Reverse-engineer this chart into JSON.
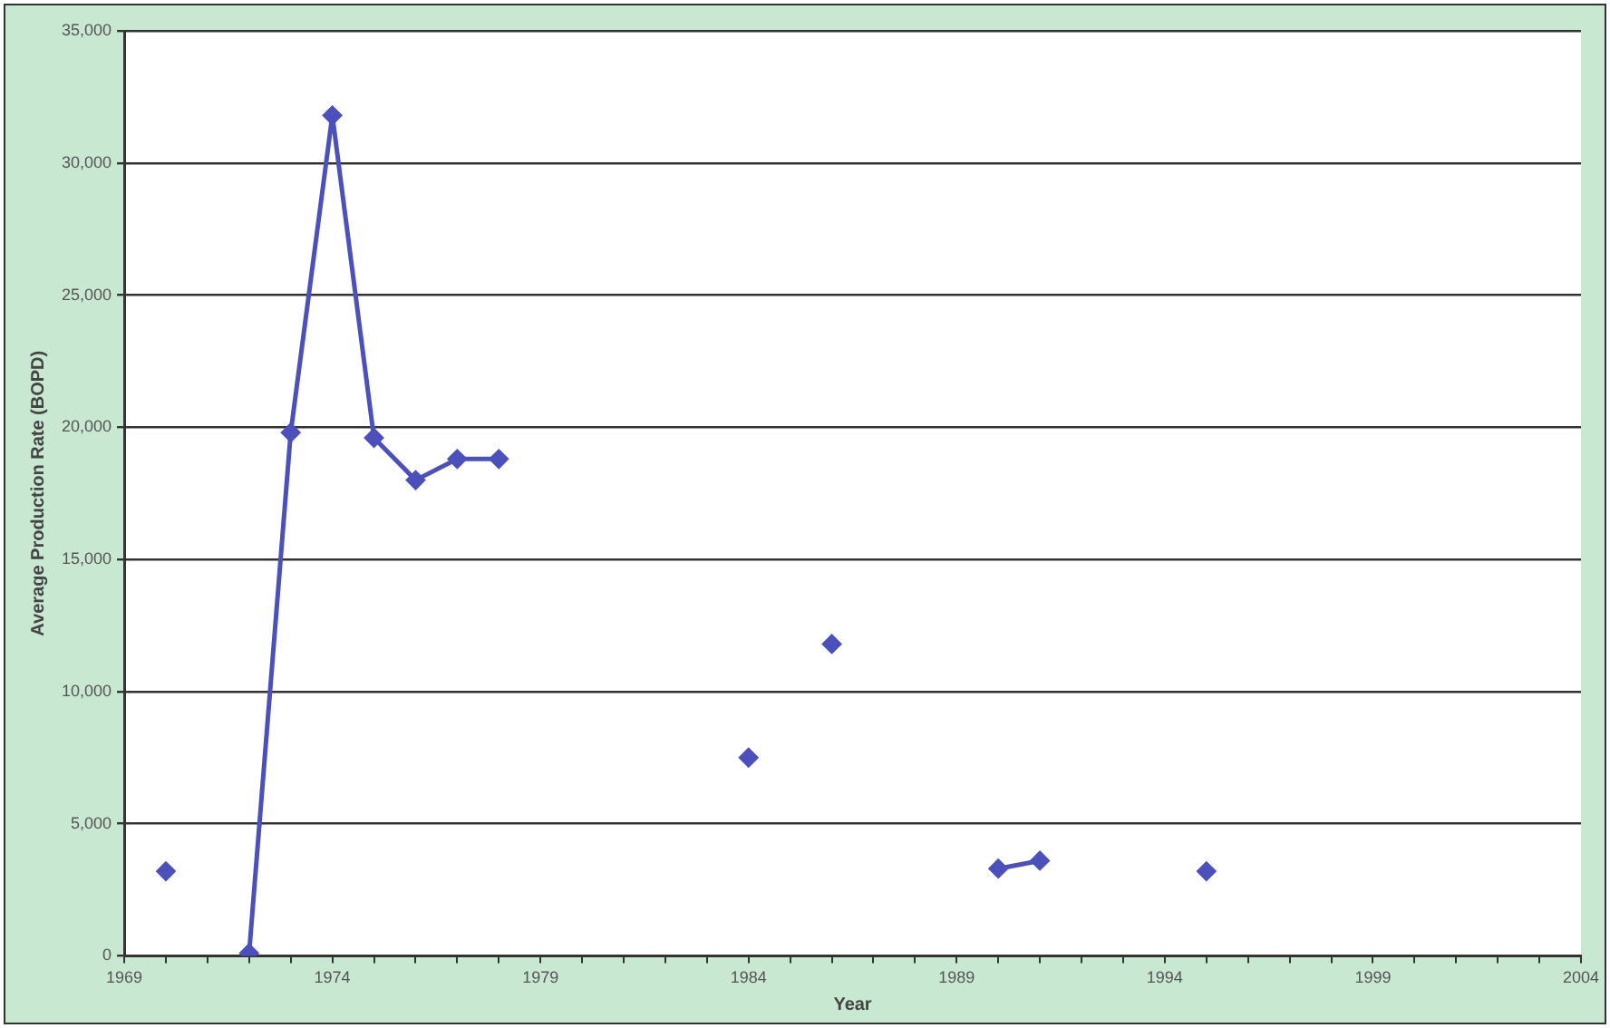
{
  "chart_data": {
    "type": "line",
    "xlabel": "Year",
    "ylabel": "Average Production Rate (BOPD)",
    "x": [
      1970,
      1971,
      1972,
      1973,
      1974,
      1975,
      1976,
      1977,
      1978,
      1979,
      1980,
      1981,
      1982,
      1983,
      1984,
      1985,
      1986,
      1987,
      1988,
      1989,
      1990,
      1991,
      1992,
      1993,
      1994,
      1995
    ],
    "series": [
      {
        "color": "#4b50bd",
        "values": [
          3200,
          null,
          100,
          19800,
          31800,
          19600,
          18000,
          18800,
          18800,
          null,
          null,
          null,
          null,
          null,
          7500,
          null,
          11800,
          null,
          null,
          null,
          3300,
          3600,
          null,
          null,
          null,
          3200
        ]
      }
    ],
    "xlim": [
      1969,
      2004
    ],
    "xticks": [
      1969,
      {
        "value": 1970,
        "label": null
      },
      {
        "value": 1971,
        "label": null
      },
      {
        "value": 1972,
        "label": null
      },
      {
        "value": 1973,
        "label": null
      },
      1974,
      {
        "value": 1975,
        "label": null
      },
      {
        "value": 1976,
        "label": null
      },
      {
        "value": 1977,
        "label": null
      },
      {
        "value": 1978,
        "label": null
      },
      1979,
      {
        "value": 1980,
        "label": null
      },
      {
        "value": 1981,
        "label": null
      },
      {
        "value": 1982,
        "label": null
      },
      {
        "value": 1983,
        "label": null
      },
      1984,
      {
        "value": 1985,
        "label": null
      },
      {
        "value": 1986,
        "label": null
      },
      {
        "value": 1987,
        "label": null
      },
      {
        "value": 1988,
        "label": null
      },
      1989,
      {
        "value": 1990,
        "label": null
      },
      {
        "value": 1991,
        "label": null
      },
      {
        "value": 1992,
        "label": null
      },
      {
        "value": 1993,
        "label": null
      },
      1994,
      {
        "value": 1995,
        "label": null
      },
      {
        "value": 1996,
        "label": null
      },
      {
        "value": 1997,
        "label": null
      },
      {
        "value": 1998,
        "label": null
      },
      1999,
      {
        "value": 2000,
        "label": null
      },
      {
        "value": 2001,
        "label": null
      },
      {
        "value": 2002,
        "label": null
      },
      {
        "value": 2003,
        "label": null
      },
      2004
    ],
    "ylim": [
      0,
      35000
    ],
    "yticks": [
      0,
      {
        "value": 5000,
        "label": "5,000"
      },
      {
        "value": 10000,
        "label": "10,000"
      },
      {
        "value": 15000,
        "label": "15,000"
      },
      {
        "value": 20000,
        "label": "20,000"
      },
      {
        "value": 25000,
        "label": "25,000"
      },
      {
        "value": 30000,
        "label": "30,000"
      },
      {
        "value": 35000,
        "label": "35,000"
      }
    ],
    "grid": "y",
    "legend": false,
    "marker": "diamond",
    "line_style": "solid"
  }
}
